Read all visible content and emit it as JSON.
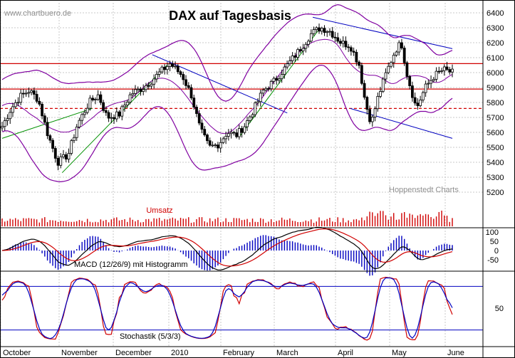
{
  "chart_data": {
    "type": "candlestick",
    "title": "DAX auf Tagesbasis",
    "watermark": "www.chartbuero.de",
    "credit": "Hoppenstedt Charts",
    "months": [
      "October",
      "November",
      "December",
      "2010",
      "February",
      "March",
      "April",
      "May",
      "June"
    ],
    "price_panel": {
      "ylim": [
        5100,
        6450
      ],
      "ticks": [
        5200,
        5300,
        5400,
        5500,
        5600,
        5700,
        5800,
        5900,
        6000,
        6100,
        6200,
        6300,
        6400
      ],
      "horizontal_lines": [
        {
          "value": 6060,
          "color": "#d00000",
          "style": "solid"
        },
        {
          "value": 5890,
          "color": "#d00000",
          "style": "solid"
        },
        {
          "value": 5760,
          "color": "#d00000",
          "style": "dashed"
        }
      ],
      "bollinger_color": "#8000a0",
      "trend_colors": {
        "support": "#009000",
        "channel": "#0000c0"
      }
    },
    "volume_panel": {
      "label": "Umsatz",
      "color": "#d00000"
    },
    "macd_panel": {
      "label": "MACD (12/26/9) mit Histogramm",
      "ticks": [
        100,
        50,
        0,
        -50
      ],
      "ylim": [
        -80,
        130
      ],
      "line_color": "#000000",
      "signal_color": "#d00000",
      "histogram_color": "#0000c0"
    },
    "stochastic_panel": {
      "label": "Stochastik  (5/3/3)",
      "ticks": [
        50
      ],
      "ylim": [
        0,
        100
      ],
      "levels": [
        80,
        20
      ],
      "k_color": "#d00000",
      "d_color": "#0000c0"
    }
  }
}
